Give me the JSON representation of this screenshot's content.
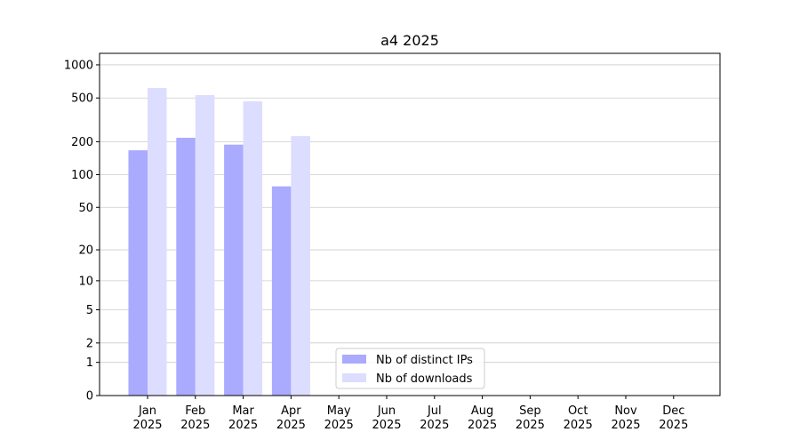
{
  "chart_data": {
    "type": "bar",
    "title": "a4 2025",
    "categories": [
      [
        "Jan",
        "2025"
      ],
      [
        "Feb",
        "2025"
      ],
      [
        "Mar",
        "2025"
      ],
      [
        "Apr",
        "2025"
      ],
      [
        "May",
        "2025"
      ],
      [
        "Jun",
        "2025"
      ],
      [
        "Jul",
        "2025"
      ],
      [
        "Aug",
        "2025"
      ],
      [
        "Sep",
        "2025"
      ],
      [
        "Oct",
        "2025"
      ],
      [
        "Nov",
        "2025"
      ],
      [
        "Dec",
        "2025"
      ]
    ],
    "series": [
      {
        "name": "Nb of distinct IPs",
        "color": "#aaaaff",
        "values": [
          167,
          217,
          188,
          78,
          null,
          null,
          null,
          null,
          null,
          null,
          null,
          null
        ]
      },
      {
        "name": "Nb of downloads",
        "color": "#ddddff",
        "values": [
          616,
          531,
          467,
          225,
          null,
          null,
          null,
          null,
          null,
          null,
          null,
          null
        ]
      }
    ],
    "yscale": "log1p",
    "ylim": [
      0,
      1272
    ],
    "yticks": [
      0,
      1,
      2,
      5,
      10,
      20,
      50,
      100,
      200,
      500,
      1000
    ],
    "grid": true,
    "legend": "lower center"
  }
}
